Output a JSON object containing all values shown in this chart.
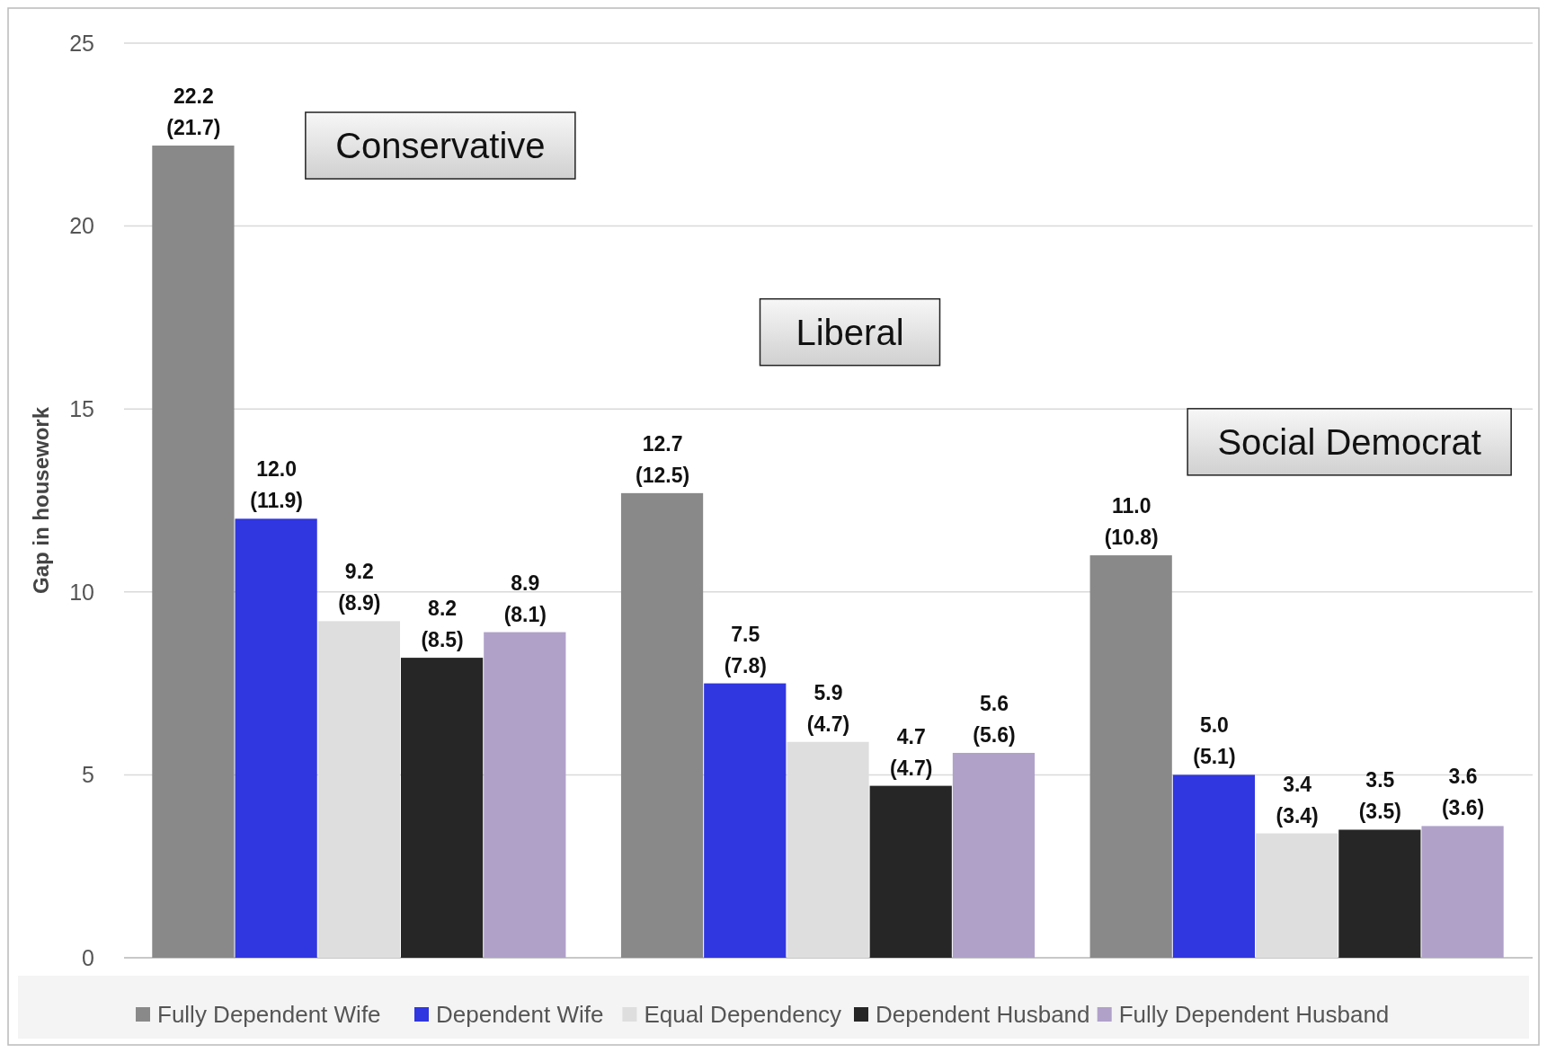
{
  "chart_data": {
    "type": "bar",
    "ylabel": "Gap in housework",
    "categories": [
      null,
      null,
      null
    ],
    "ylim": [
      0,
      25
    ],
    "yticks": [
      0,
      5,
      10,
      15,
      20,
      25
    ],
    "grid": "y",
    "legend": "bottom",
    "annotations": [
      "Conservative",
      "Liberal",
      "Social Democrat"
    ],
    "series": [
      {
        "name": "Fully Dependent Wife",
        "color": "#898989",
        "values": [
          22.2,
          12.7,
          11.0
        ],
        "value_labels": [
          "22.2\n(21.7)",
          "12.7\n(12.5)",
          "11.0\n(10.8)"
        ]
      },
      {
        "name": "Dependent Wife",
        "color": "#3036e0",
        "values": [
          12.0,
          7.5,
          5.0
        ],
        "value_labels": [
          "12.0\n(11.9)",
          "7.5\n(7.8)",
          "5.0\n(5.1)"
        ]
      },
      {
        "name": "Equal Dependency",
        "color": "#dedede",
        "values": [
          9.2,
          5.9,
          3.4
        ],
        "value_labels": [
          "9.2\n(8.9)",
          "5.9\n(4.7)",
          "3.4\n(3.4)"
        ]
      },
      {
        "name": "Dependent Husband",
        "color": "#262626",
        "values": [
          8.2,
          4.7,
          3.5
        ],
        "value_labels": [
          "8.2\n(8.5)",
          "4.7\n(4.7)",
          "3.5\n(3.5)"
        ]
      },
      {
        "name": "Fully Dependent Husband",
        "color": "#b0a1c9",
        "values": [
          8.9,
          5.6,
          3.6
        ],
        "value_labels": [
          "8.9\n(8.1)",
          "5.6\n(5.6)",
          "3.6\n(3.6)"
        ]
      }
    ]
  }
}
